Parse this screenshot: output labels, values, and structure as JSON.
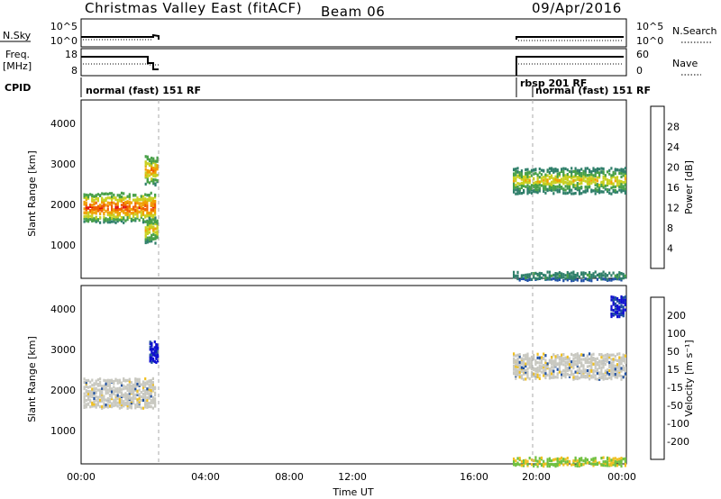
{
  "header": {
    "title": "Christmas Valley East (fitACF)",
    "beam": "Beam 06",
    "date": "09/Apr/2016"
  },
  "status_panels": {
    "nsky_label": "N.Sky",
    "nsky_ticks": [
      "10^5",
      "10^0"
    ],
    "nsearch_label": "N.Search",
    "nsearch_ticks": [
      "10^5",
      "10^0"
    ],
    "freq_label_1": "Freq.",
    "freq_label_2": "[MHz]",
    "freq_ticks": [
      "18",
      "8"
    ],
    "nave_label": "Nave",
    "nave_ticks": [
      "60",
      "0"
    ],
    "cpid_label": "CPID",
    "cpid_entries": [
      "normal (fast) 151 RF",
      "rbsp 201 RF",
      "normal (fast) 151 RF"
    ]
  },
  "axes": {
    "x_ticks": [
      "00:00",
      "04:00",
      "08:00",
      "12:00",
      "16:00",
      "20:00",
      "00:00"
    ],
    "x_label": "Time UT",
    "y_ticks": [
      "1000",
      "2000",
      "3000",
      "4000"
    ],
    "y_label": "Slant Range [km]"
  },
  "power_scale": {
    "label": "Power [dB]",
    "ticks": [
      "4",
      "8",
      "12",
      "16",
      "20",
      "24",
      "28"
    ],
    "colors": [
      "#1010e6",
      "#2050a8",
      "#2f7f6a",
      "#48a048",
      "#c8d020",
      "#f0a000",
      "#f06000",
      "#e01010"
    ]
  },
  "velocity_scale": {
    "label": "Velocity [m s⁻¹]",
    "ticks": [
      "200",
      "100",
      "50",
      "15",
      "-15",
      "-50",
      "-100",
      "-200"
    ],
    "colors": [
      "#1010d0",
      "#2050a0",
      "#2f7f50",
      "#70c040",
      "#c8c8c0",
      "#f0c020",
      "#f08000",
      "#e04010",
      "#e01010"
    ]
  },
  "chart_data": [
    {
      "type": "heatmap",
      "name": "power",
      "x_range_hours": [
        0,
        24
      ],
      "ylim": [
        200,
        4500
      ],
      "data_gaps": [
        [
          3.5,
          19.0
        ]
      ],
      "features": [
        {
          "t": [
            0.1,
            3.3
          ],
          "range": [
            1600,
            2300
          ],
          "power_peak": 28
        },
        {
          "t": [
            2.8,
            3.4
          ],
          "range": [
            2500,
            3200
          ],
          "power_peak": 24
        },
        {
          "t": [
            2.8,
            3.4
          ],
          "range": [
            1100,
            1700
          ],
          "power_peak": 22
        },
        {
          "t": [
            19.0,
            24.0
          ],
          "range": [
            2300,
            2900
          ],
          "power_peak": 20
        },
        {
          "t": [
            19.0,
            24.0
          ],
          "range": [
            200,
            400
          ],
          "power_peak": 12
        }
      ]
    },
    {
      "type": "heatmap",
      "name": "velocity",
      "x_range_hours": [
        0,
        24
      ],
      "ylim": [
        200,
        4500
      ],
      "data_gaps": [
        [
          3.5,
          19.0
        ]
      ],
      "features": [
        {
          "t": [
            0.1,
            3.3
          ],
          "range": [
            1600,
            2300
          ],
          "velocity": 0
        },
        {
          "t": [
            3.0,
            3.4
          ],
          "range": [
            2700,
            3200
          ],
          "velocity": 200
        },
        {
          "t": [
            19.0,
            24.0
          ],
          "range": [
            2300,
            2900
          ],
          "velocity": 0
        },
        {
          "t": [
            23.3,
            24.0
          ],
          "range": [
            3800,
            4300
          ],
          "velocity": 200
        },
        {
          "t": [
            19.0,
            24.0
          ],
          "range": [
            200,
            400
          ],
          "velocity": 60
        }
      ]
    }
  ]
}
